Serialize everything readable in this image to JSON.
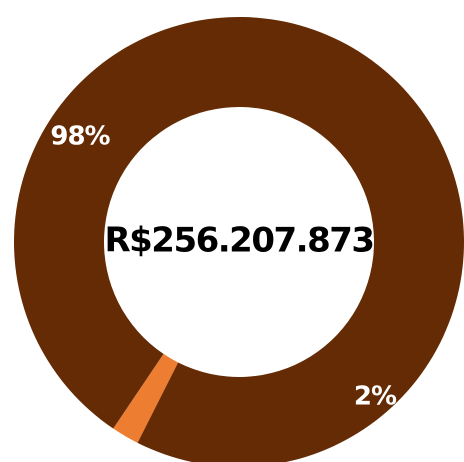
{
  "chart_data": {
    "type": "pie",
    "variant": "donut",
    "title": "",
    "center_label": "R$256.207.873",
    "slices": [
      {
        "label": "98%",
        "value": 98,
        "color": "#642B04"
      },
      {
        "label": "2%",
        "value": 2,
        "color": "#ED7D31"
      }
    ],
    "legend": "none"
  }
}
